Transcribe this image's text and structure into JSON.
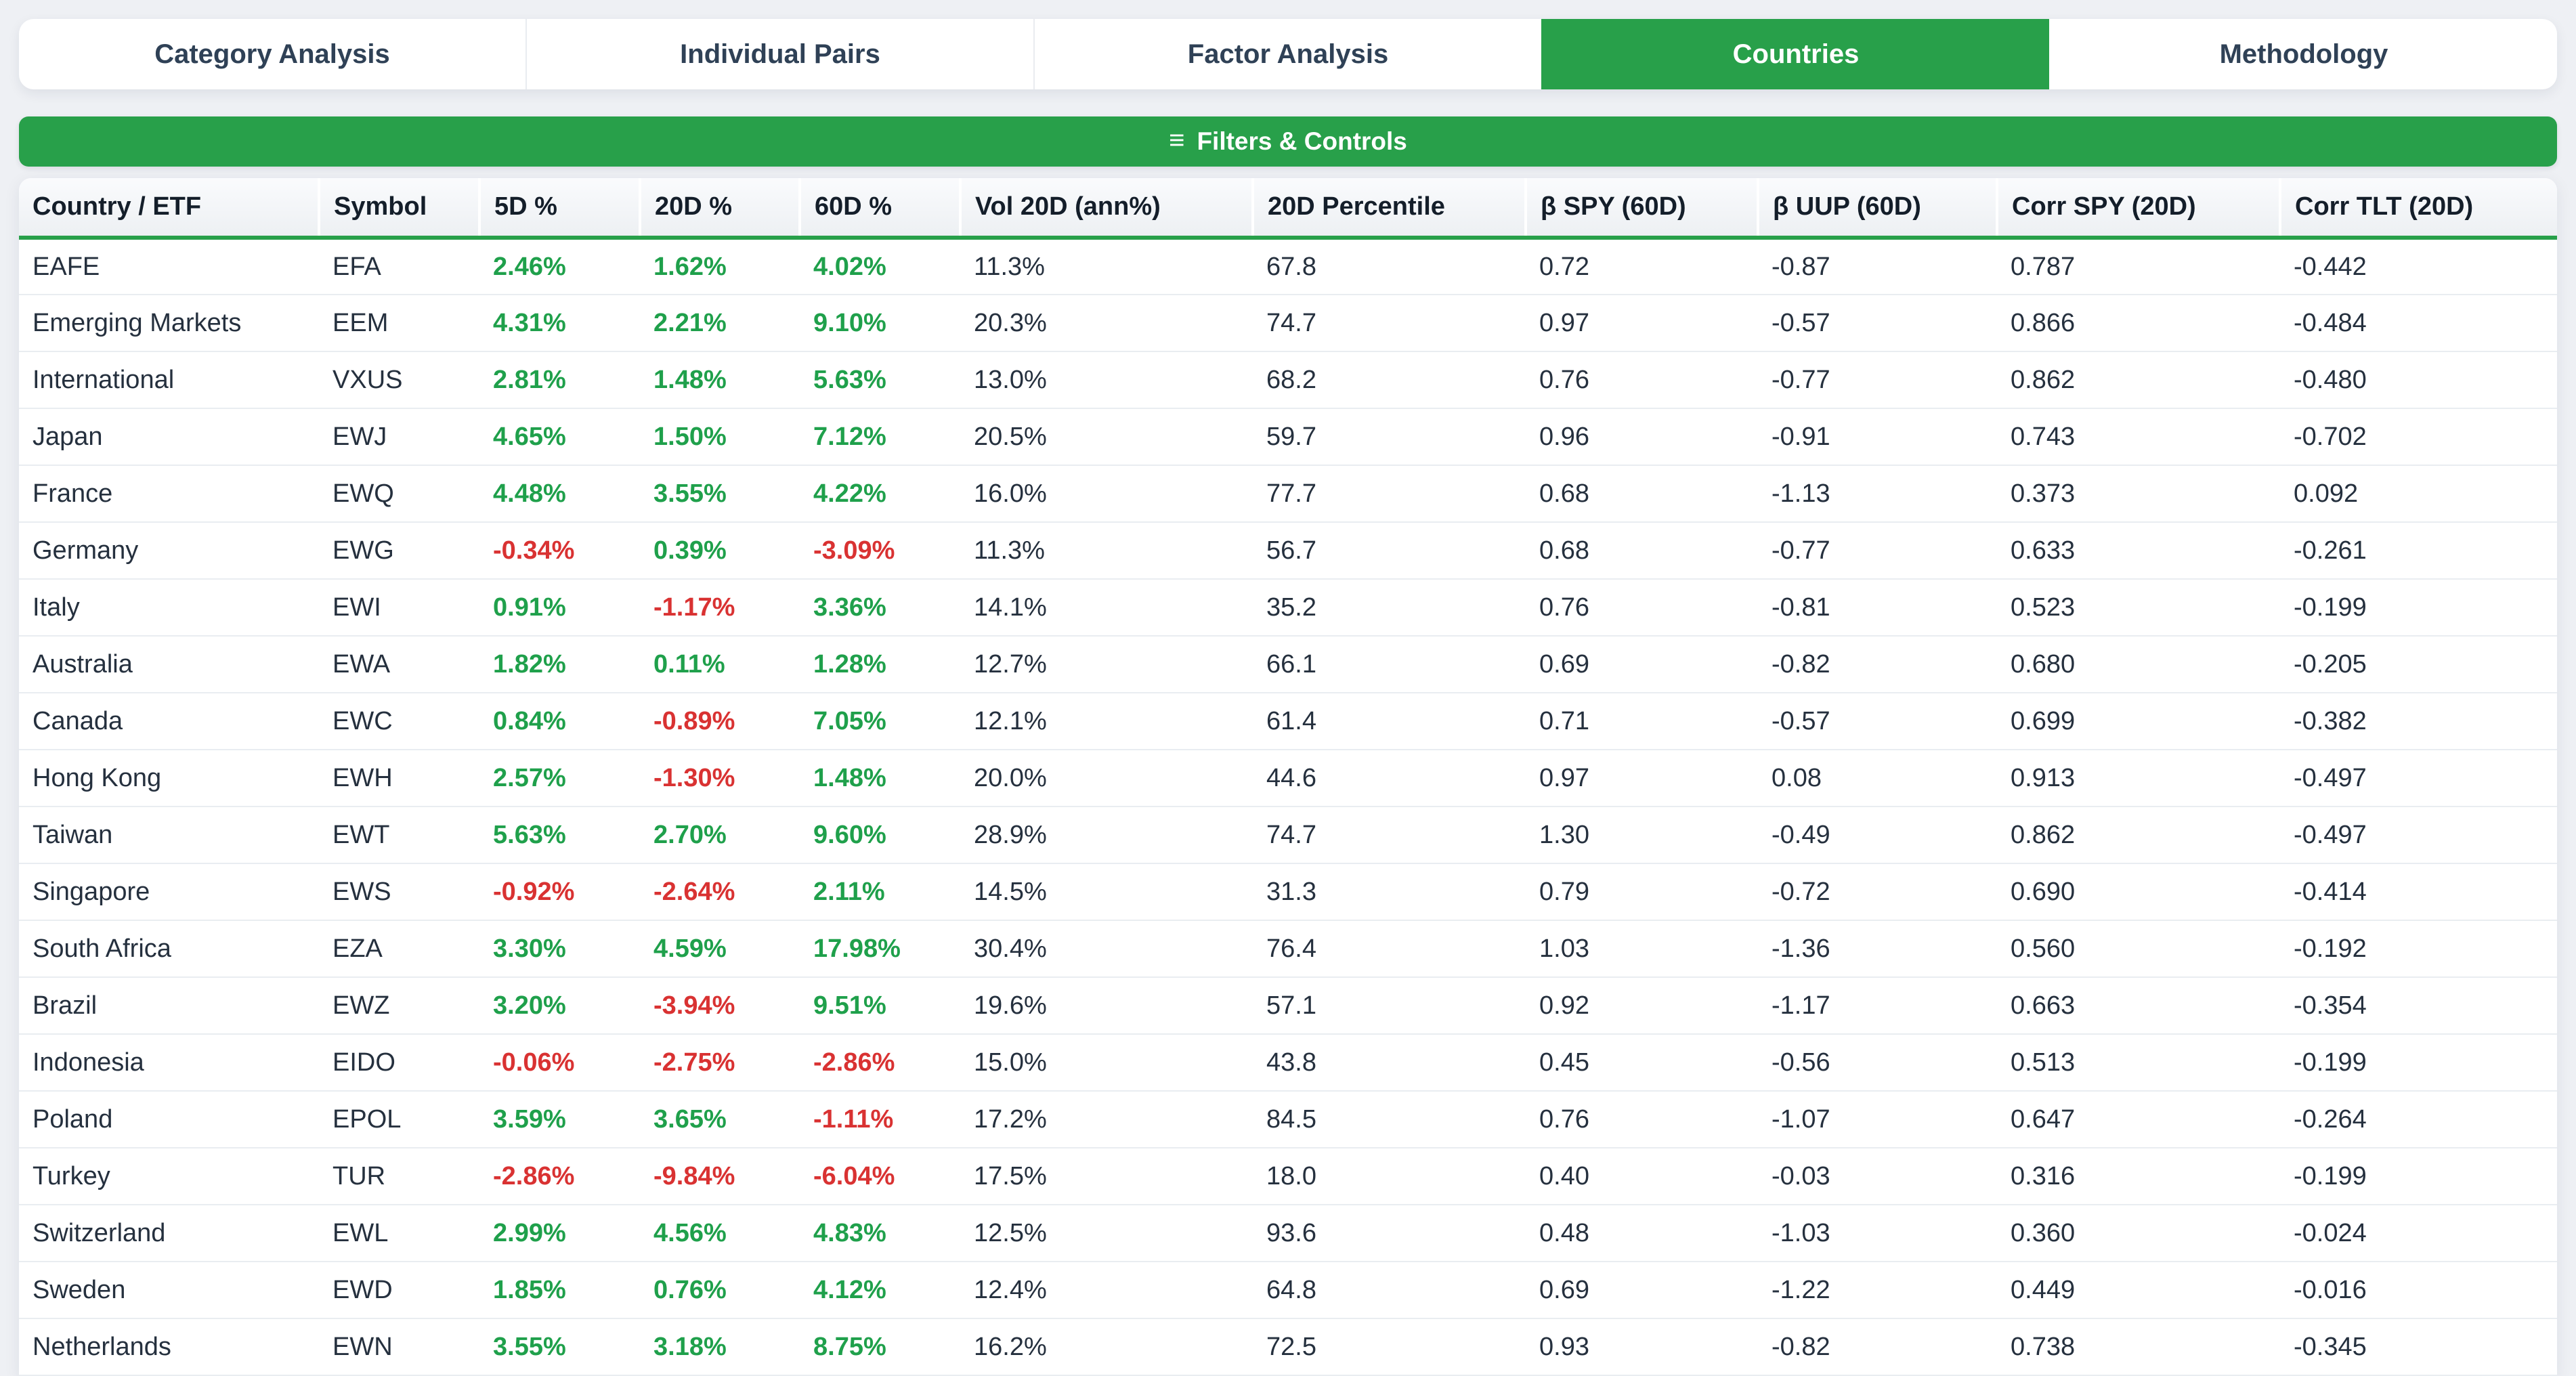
{
  "colors": {
    "accent_green": "#28a04a",
    "positive": "#1fa04b",
    "negative": "#d93232",
    "tab_text": "#2f4156",
    "header_text": "#141e2a",
    "cell_text": "#25303e"
  },
  "tabs": {
    "items": [
      {
        "label": "Category Analysis",
        "active": false
      },
      {
        "label": "Individual Pairs",
        "active": false
      },
      {
        "label": "Factor Analysis",
        "active": false
      },
      {
        "label": "Countries",
        "active": true
      },
      {
        "label": "Methodology",
        "active": false
      }
    ]
  },
  "filters_bar": {
    "icon": "≡",
    "label": "Filters & Controls"
  },
  "table": {
    "columns": [
      "Country / ETF",
      "Symbol",
      "5D %",
      "20D %",
      "60D %",
      "Vol 20D (ann%)",
      "20D Percentile",
      "β SPY (60D)",
      "β UUP (60D)",
      "Corr SPY (20D)",
      "Corr TLT (20D)"
    ],
    "rows": [
      {
        "country": "EAFE",
        "symbol": "EFA",
        "d5": "2.46%",
        "d20": "1.62%",
        "d60": "4.02%",
        "vol": "11.3%",
        "pctile": "67.8",
        "beta_spy": "0.72",
        "beta_uup": "-0.87",
        "corr_spy": "0.787",
        "corr_tlt": "-0.442"
      },
      {
        "country": "Emerging Markets",
        "symbol": "EEM",
        "d5": "4.31%",
        "d20": "2.21%",
        "d60": "9.10%",
        "vol": "20.3%",
        "pctile": "74.7",
        "beta_spy": "0.97",
        "beta_uup": "-0.57",
        "corr_spy": "0.866",
        "corr_tlt": "-0.484"
      },
      {
        "country": "International",
        "symbol": "VXUS",
        "d5": "2.81%",
        "d20": "1.48%",
        "d60": "5.63%",
        "vol": "13.0%",
        "pctile": "68.2",
        "beta_spy": "0.76",
        "beta_uup": "-0.77",
        "corr_spy": "0.862",
        "corr_tlt": "-0.480"
      },
      {
        "country": "Japan",
        "symbol": "EWJ",
        "d5": "4.65%",
        "d20": "1.50%",
        "d60": "7.12%",
        "vol": "20.5%",
        "pctile": "59.7",
        "beta_spy": "0.96",
        "beta_uup": "-0.91",
        "corr_spy": "0.743",
        "corr_tlt": "-0.702"
      },
      {
        "country": "France",
        "symbol": "EWQ",
        "d5": "4.48%",
        "d20": "3.55%",
        "d60": "4.22%",
        "vol": "16.0%",
        "pctile": "77.7",
        "beta_spy": "0.68",
        "beta_uup": "-1.13",
        "corr_spy": "0.373",
        "corr_tlt": "0.092"
      },
      {
        "country": "Germany",
        "symbol": "EWG",
        "d5": "-0.34%",
        "d20": "0.39%",
        "d60": "-3.09%",
        "vol": "11.3%",
        "pctile": "56.7",
        "beta_spy": "0.68",
        "beta_uup": "-0.77",
        "corr_spy": "0.633",
        "corr_tlt": "-0.261"
      },
      {
        "country": "Italy",
        "symbol": "EWI",
        "d5": "0.91%",
        "d20": "-1.17%",
        "d60": "3.36%",
        "vol": "14.1%",
        "pctile": "35.2",
        "beta_spy": "0.76",
        "beta_uup": "-0.81",
        "corr_spy": "0.523",
        "corr_tlt": "-0.199"
      },
      {
        "country": "Australia",
        "symbol": "EWA",
        "d5": "1.82%",
        "d20": "0.11%",
        "d60": "1.28%",
        "vol": "12.7%",
        "pctile": "66.1",
        "beta_spy": "0.69",
        "beta_uup": "-0.82",
        "corr_spy": "0.680",
        "corr_tlt": "-0.205"
      },
      {
        "country": "Canada",
        "symbol": "EWC",
        "d5": "0.84%",
        "d20": "-0.89%",
        "d60": "7.05%",
        "vol": "12.1%",
        "pctile": "61.4",
        "beta_spy": "0.71",
        "beta_uup": "-0.57",
        "corr_spy": "0.699",
        "corr_tlt": "-0.382"
      },
      {
        "country": "Hong Kong",
        "symbol": "EWH",
        "d5": "2.57%",
        "d20": "-1.30%",
        "d60": "1.48%",
        "vol": "20.0%",
        "pctile": "44.6",
        "beta_spy": "0.97",
        "beta_uup": "0.08",
        "corr_spy": "0.913",
        "corr_tlt": "-0.497"
      },
      {
        "country": "Taiwan",
        "symbol": "EWT",
        "d5": "5.63%",
        "d20": "2.70%",
        "d60": "9.60%",
        "vol": "28.9%",
        "pctile": "74.7",
        "beta_spy": "1.30",
        "beta_uup": "-0.49",
        "corr_spy": "0.862",
        "corr_tlt": "-0.497"
      },
      {
        "country": "Singapore",
        "symbol": "EWS",
        "d5": "-0.92%",
        "d20": "-2.64%",
        "d60": "2.11%",
        "vol": "14.5%",
        "pctile": "31.3",
        "beta_spy": "0.79",
        "beta_uup": "-0.72",
        "corr_spy": "0.690",
        "corr_tlt": "-0.414"
      },
      {
        "country": "South Africa",
        "symbol": "EZA",
        "d5": "3.30%",
        "d20": "4.59%",
        "d60": "17.98%",
        "vol": "30.4%",
        "pctile": "76.4",
        "beta_spy": "1.03",
        "beta_uup": "-1.36",
        "corr_spy": "0.560",
        "corr_tlt": "-0.192"
      },
      {
        "country": "Brazil",
        "symbol": "EWZ",
        "d5": "3.20%",
        "d20": "-3.94%",
        "d60": "9.51%",
        "vol": "19.6%",
        "pctile": "57.1",
        "beta_spy": "0.92",
        "beta_uup": "-1.17",
        "corr_spy": "0.663",
        "corr_tlt": "-0.354"
      },
      {
        "country": "Indonesia",
        "symbol": "EIDO",
        "d5": "-0.06%",
        "d20": "-2.75%",
        "d60": "-2.86%",
        "vol": "15.0%",
        "pctile": "43.8",
        "beta_spy": "0.45",
        "beta_uup": "-0.56",
        "corr_spy": "0.513",
        "corr_tlt": "-0.199"
      },
      {
        "country": "Poland",
        "symbol": "EPOL",
        "d5": "3.59%",
        "d20": "3.65%",
        "d60": "-1.11%",
        "vol": "17.2%",
        "pctile": "84.5",
        "beta_spy": "0.76",
        "beta_uup": "-1.07",
        "corr_spy": "0.647",
        "corr_tlt": "-0.264"
      },
      {
        "country": "Turkey",
        "symbol": "TUR",
        "d5": "-2.86%",
        "d20": "-9.84%",
        "d60": "-6.04%",
        "vol": "17.5%",
        "pctile": "18.0",
        "beta_spy": "0.40",
        "beta_uup": "-0.03",
        "corr_spy": "0.316",
        "corr_tlt": "-0.199"
      },
      {
        "country": "Switzerland",
        "symbol": "EWL",
        "d5": "2.99%",
        "d20": "4.56%",
        "d60": "4.83%",
        "vol": "12.5%",
        "pctile": "93.6",
        "beta_spy": "0.48",
        "beta_uup": "-1.03",
        "corr_spy": "0.360",
        "corr_tlt": "-0.024"
      },
      {
        "country": "Sweden",
        "symbol": "EWD",
        "d5": "1.85%",
        "d20": "0.76%",
        "d60": "4.12%",
        "vol": "12.4%",
        "pctile": "64.8",
        "beta_spy": "0.69",
        "beta_uup": "-1.22",
        "corr_spy": "0.449",
        "corr_tlt": "-0.016"
      },
      {
        "country": "Netherlands",
        "symbol": "EWN",
        "d5": "3.55%",
        "d20": "3.18%",
        "d60": "8.75%",
        "vol": "16.2%",
        "pctile": "72.5",
        "beta_spy": "0.93",
        "beta_uup": "-0.82",
        "corr_spy": "0.738",
        "corr_tlt": "-0.345"
      }
    ]
  }
}
